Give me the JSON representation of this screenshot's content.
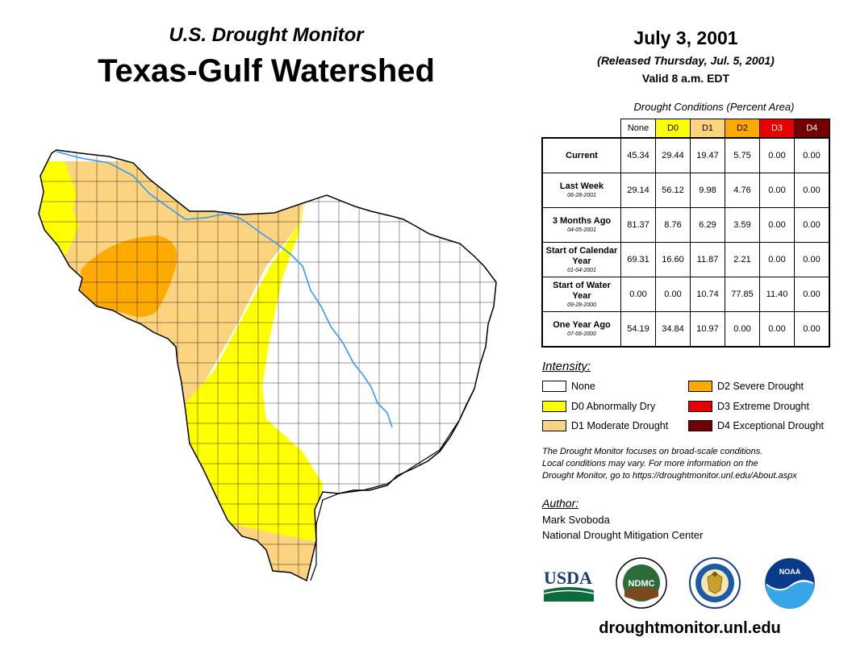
{
  "header": {
    "subtitle": "U.S. Drought Monitor",
    "title": "Texas-Gulf Watershed",
    "date": "July 3, 2001",
    "released": "(Released Thursday, Jul. 5, 2001)",
    "valid": "Valid 8 a.m. EDT"
  },
  "table": {
    "caption": "Drought Conditions (Percent Area)",
    "columns": [
      "None",
      "D0",
      "D1",
      "D2",
      "D3",
      "D4"
    ],
    "rows": [
      {
        "label": "Current",
        "date": "",
        "values": [
          "45.34",
          "29.44",
          "19.47",
          "5.75",
          "0.00",
          "0.00"
        ]
      },
      {
        "label": "Last Week",
        "date": "06-28-2001",
        "values": [
          "29.14",
          "56.12",
          "9.98",
          "4.76",
          "0.00",
          "0.00"
        ]
      },
      {
        "label": "3 Months Ago",
        "date": "04-05-2001",
        "values": [
          "81.37",
          "8.76",
          "6.29",
          "3.59",
          "0.00",
          "0.00"
        ]
      },
      {
        "label": "Start of Calendar Year",
        "date": "01-04-2001",
        "values": [
          "69.31",
          "16.60",
          "11.87",
          "2.21",
          "0.00",
          "0.00"
        ]
      },
      {
        "label": "Start of Water Year",
        "date": "09-28-2000",
        "values": [
          "0.00",
          "0.00",
          "10.74",
          "77.85",
          "11.40",
          "0.00"
        ]
      },
      {
        "label": "One Year Ago",
        "date": "07-06-2000",
        "values": [
          "54.19",
          "34.84",
          "10.97",
          "0.00",
          "0.00",
          "0.00"
        ]
      }
    ]
  },
  "legend": {
    "title": "Intensity:",
    "items": [
      {
        "label": "None",
        "color": "#ffffff"
      },
      {
        "label": "D0 Abnormally Dry",
        "color": "#ffff00"
      },
      {
        "label": "D1 Moderate Drought",
        "color": "#fcd37f"
      },
      {
        "label": "D2 Severe Drought",
        "color": "#ffaa00"
      },
      {
        "label": "D3 Extreme Drought",
        "color": "#e60000"
      },
      {
        "label": "D4 Exceptional Drought",
        "color": "#730000"
      }
    ]
  },
  "note": {
    "line1": "The Drought Monitor focuses on broad-scale conditions.",
    "line2": "Local conditions may vary. For more information on the",
    "line3": "Drought Monitor, go to https://droughtmonitor.unl.edu/About.aspx"
  },
  "author": {
    "title": "Author:",
    "name": "Mark Svoboda",
    "org": "National Drought Mitigation Center"
  },
  "logos": {
    "usda": "USDA",
    "ndmc": "NDMC",
    "noaa": "NOAA"
  },
  "footer": {
    "site": "droughtmonitor.unl.edu"
  },
  "colors": {
    "none": "#ffffff",
    "d0": "#ffff00",
    "d1": "#fcd37f",
    "d2": "#ffaa00",
    "d3": "#e60000",
    "d4": "#730000",
    "river": "#3399ff",
    "county_line": "#000000"
  }
}
